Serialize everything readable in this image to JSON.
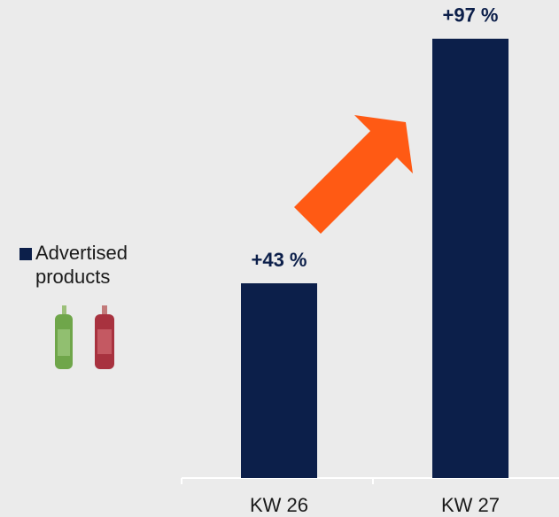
{
  "chart_data": {
    "type": "bar",
    "categories": [
      "KW 26",
      "KW 27"
    ],
    "series": [
      {
        "name": "Advertised products",
        "color": "#0c1f4a",
        "values": [
          43,
          97
        ],
        "value_labels": [
          "+43 %",
          "+97 %"
        ]
      }
    ],
    "legend": "left"
  }
}
